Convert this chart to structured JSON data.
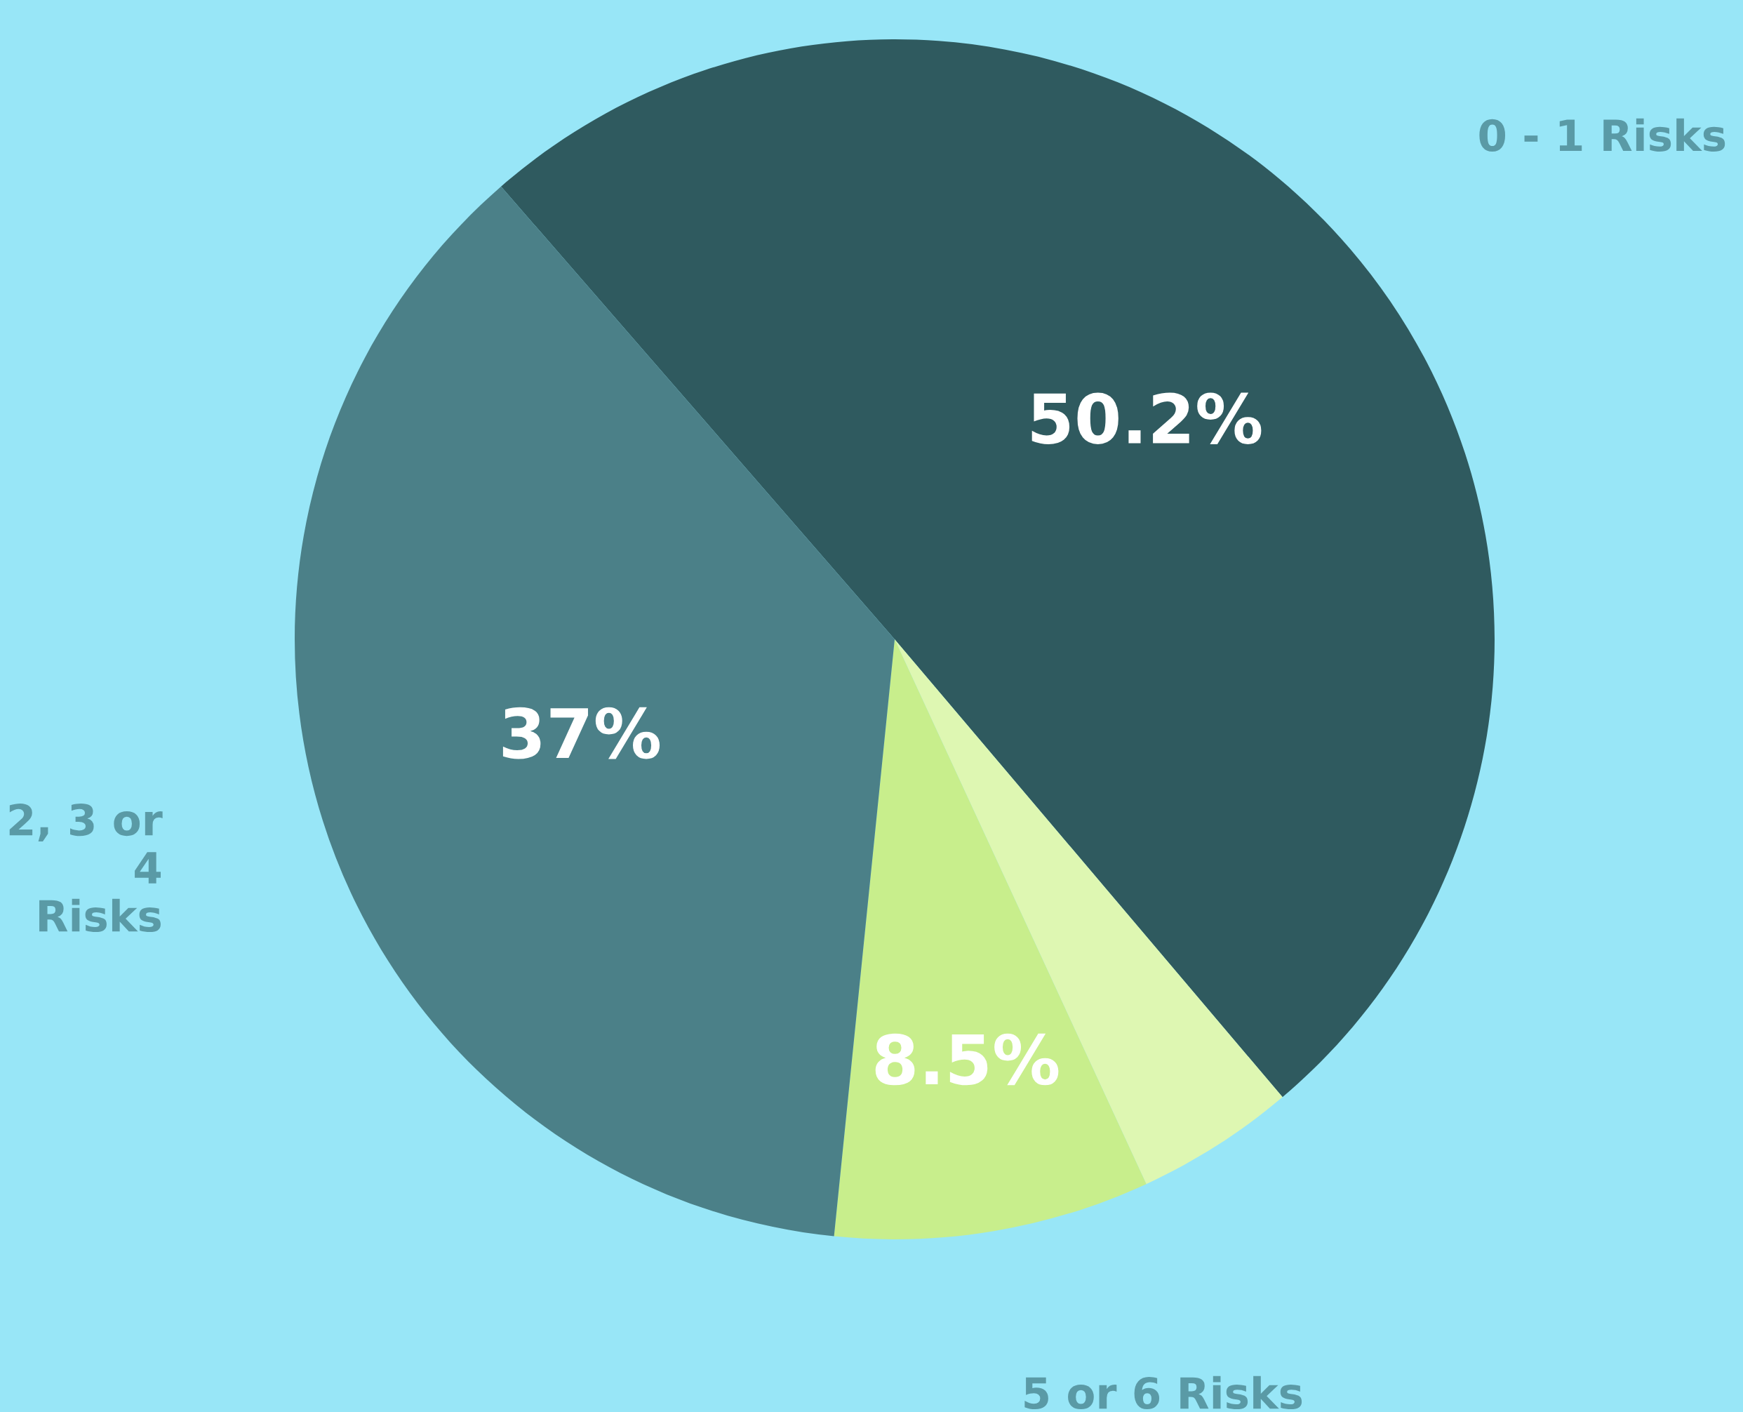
{
  "chart_data": {
    "type": "pie",
    "categories": [
      "0 - 1 Risks",
      null,
      "5 or 6 Risks",
      "2, 3 or 4 Risks"
    ],
    "values": [
      50.2,
      4.3,
      8.5,
      37
    ],
    "colors": [
      "#2f5a5f",
      "#def7b2",
      "#c8ee8c",
      "#4b8088"
    ],
    "value_labels": [
      "50.2%",
      null,
      "8.5%",
      "37%"
    ]
  }
}
